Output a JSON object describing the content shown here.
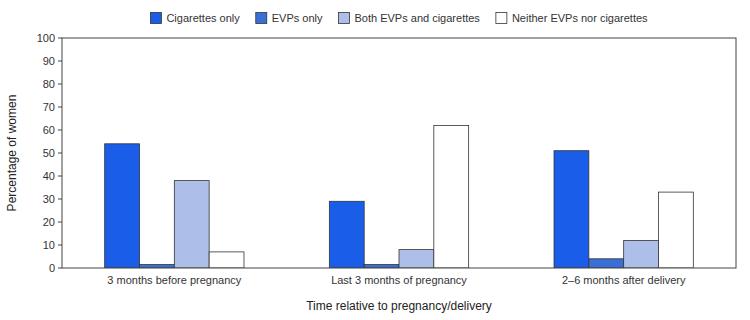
{
  "chart_data": {
    "type": "bar",
    "xlabel": "Time relative to pregnancy/delivery",
    "ylabel": "Percentage of women",
    "categories": [
      "3 months before pregnancy",
      "Last 3 months of pregnancy",
      "2–6 months after delivery"
    ],
    "series": [
      {
        "name": "Cigarettes only",
        "color": "#1a5de8",
        "values": [
          54,
          29,
          51
        ]
      },
      {
        "name": "EVPs only",
        "color": "#3a6fd8",
        "values": [
          1.5,
          1.5,
          4
        ]
      },
      {
        "name": "Both EVPs and cigarettes",
        "color": "#adbfe8",
        "values": [
          38,
          8,
          12
        ]
      },
      {
        "name": "Neither EVPs nor cigarettes",
        "color": "#ffffff",
        "values": [
          7,
          62,
          33
        ]
      }
    ],
    "ylim": [
      0,
      100
    ],
    "yticks": [
      0,
      10,
      20,
      30,
      40,
      50,
      60,
      70,
      80,
      90,
      100
    ],
    "grid": false,
    "legend": "top"
  }
}
